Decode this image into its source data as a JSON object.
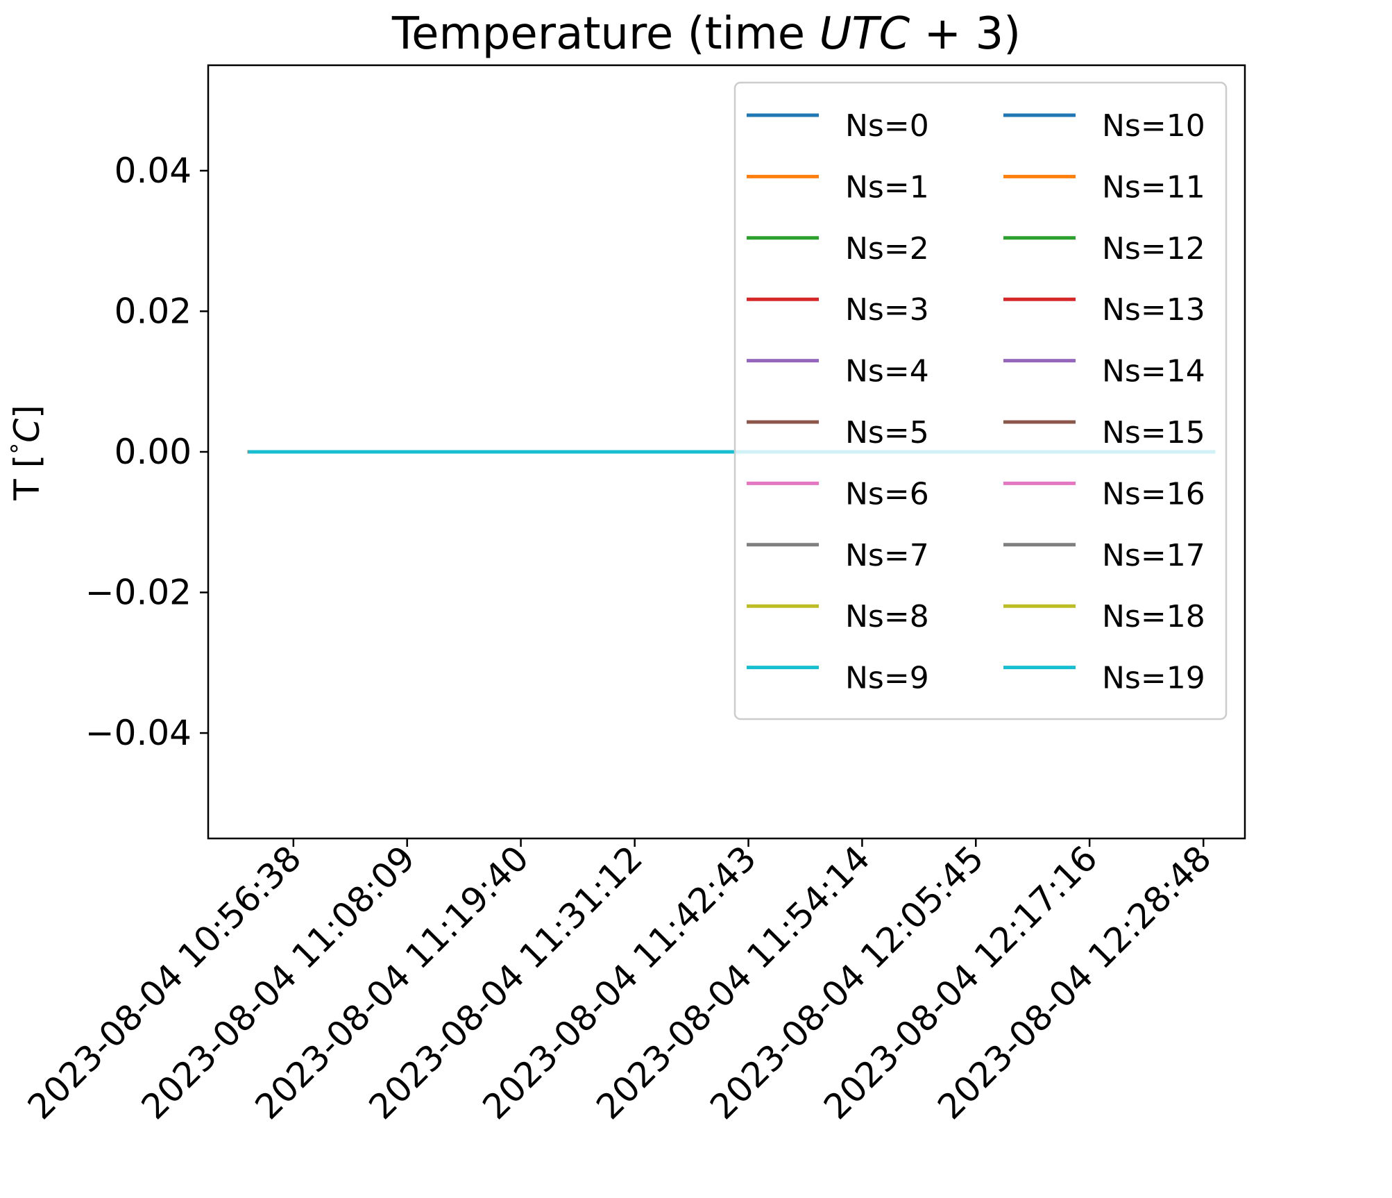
{
  "chart_data": {
    "type": "line",
    "title": "Temperature (time UTC + 3)",
    "title_parts": {
      "prefix": "Temperature (time ",
      "math": "UTC",
      "suffix": " + 3)"
    },
    "xlabel": "",
    "ylabel": "T [ °C]",
    "ylabel_parts": {
      "prefix": "T [",
      "degree": "°",
      "unit": "C",
      "suffix": "]"
    },
    "ylim": [
      -0.055,
      0.055
    ],
    "y_ticks": [
      {
        "value": 0.04,
        "label": "0.04"
      },
      {
        "value": 0.02,
        "label": "0.02"
      },
      {
        "value": 0.0,
        "label": "0.00"
      },
      {
        "value": -0.02,
        "label": "−0.02"
      },
      {
        "value": -0.04,
        "label": "−0.04"
      }
    ],
    "x_ticks": [
      "2023-08-04 10:56:38",
      "2023-08-04 11:08:09",
      "2023-08-04 11:19:40",
      "2023-08-04 11:31:12",
      "2023-08-04 11:42:43",
      "2023-08-04 11:54:14",
      "2023-08-04 12:05:45",
      "2023-08-04 12:17:16",
      "2023-08-04 12:28:48"
    ],
    "x_range": [
      "2023-08-04 10:48:00",
      "2023-08-04 12:33:00"
    ],
    "x_span": [
      "2023-08-04 10:52:00",
      "2023-08-04 12:30:00"
    ],
    "grid": false,
    "legend_position": "top-right",
    "legend_columns": 2,
    "series": [
      {
        "name": "Ns=0",
        "color": "#1f77b4",
        "value": 0
      },
      {
        "name": "Ns=1",
        "color": "#ff7f0e",
        "value": 0
      },
      {
        "name": "Ns=2",
        "color": "#2ca02c",
        "value": 0
      },
      {
        "name": "Ns=3",
        "color": "#d62728",
        "value": 0
      },
      {
        "name": "Ns=4",
        "color": "#9467bd",
        "value": 0
      },
      {
        "name": "Ns=5",
        "color": "#8c564b",
        "value": 0
      },
      {
        "name": "Ns=6",
        "color": "#e377c2",
        "value": 0
      },
      {
        "name": "Ns=7",
        "color": "#7f7f7f",
        "value": 0
      },
      {
        "name": "Ns=8",
        "color": "#bcbd22",
        "value": 0
      },
      {
        "name": "Ns=9",
        "color": "#17becf",
        "value": 0
      },
      {
        "name": "Ns=10",
        "color": "#1f77b4",
        "value": 0
      },
      {
        "name": "Ns=11",
        "color": "#ff7f0e",
        "value": 0
      },
      {
        "name": "Ns=12",
        "color": "#2ca02c",
        "value": 0
      },
      {
        "name": "Ns=13",
        "color": "#d62728",
        "value": 0
      },
      {
        "name": "Ns=14",
        "color": "#9467bd",
        "value": 0
      },
      {
        "name": "Ns=15",
        "color": "#8c564b",
        "value": 0
      },
      {
        "name": "Ns=16",
        "color": "#e377c2",
        "value": 0
      },
      {
        "name": "Ns=17",
        "color": "#7f7f7f",
        "value": 0
      },
      {
        "name": "Ns=18",
        "color": "#bcbd22",
        "value": 0
      },
      {
        "name": "Ns=19",
        "color": "#17becf",
        "value": 0
      }
    ]
  }
}
